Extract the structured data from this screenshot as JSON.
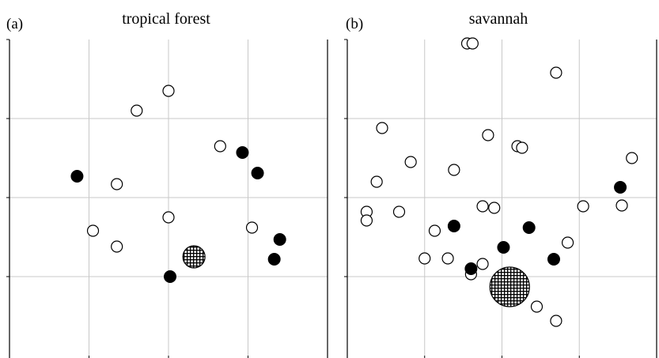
{
  "chart_data": [
    {
      "type": "scatter",
      "panel_label": "(a)",
      "title": "tropical forest",
      "xlim": [
        0,
        4
      ],
      "ylim": [
        0,
        4
      ],
      "grid": true,
      "open_circles": [
        {
          "x": 2.0,
          "y": 3.35
        },
        {
          "x": 1.6,
          "y": 3.1
        },
        {
          "x": 2.65,
          "y": 2.65
        },
        {
          "x": 1.35,
          "y": 2.17
        },
        {
          "x": 2.0,
          "y": 1.75
        },
        {
          "x": 1.05,
          "y": 1.58
        },
        {
          "x": 3.05,
          "y": 1.62
        },
        {
          "x": 1.35,
          "y": 1.38
        }
      ],
      "filled_circles": [
        {
          "x": 2.93,
          "y": 2.57
        },
        {
          "x": 0.85,
          "y": 2.27
        },
        {
          "x": 3.12,
          "y": 2.31
        },
        {
          "x": 3.4,
          "y": 1.47
        },
        {
          "x": 3.33,
          "y": 1.22
        },
        {
          "x": 2.02,
          "y": 1.0
        }
      ],
      "hatched_circles": [
        {
          "x": 2.32,
          "y": 1.25,
          "size": "small"
        }
      ]
    },
    {
      "type": "scatter",
      "panel_label": "(b)",
      "title": "savannah",
      "xlim": [
        0,
        4
      ],
      "ylim": [
        0,
        4
      ],
      "grid": true,
      "open_circles": [
        {
          "x": 1.55,
          "y": 3.95
        },
        {
          "x": 1.62,
          "y": 3.95
        },
        {
          "x": 2.7,
          "y": 3.58
        },
        {
          "x": 0.45,
          "y": 2.88
        },
        {
          "x": 1.82,
          "y": 2.79
        },
        {
          "x": 2.2,
          "y": 2.65
        },
        {
          "x": 2.26,
          "y": 2.63
        },
        {
          "x": 0.82,
          "y": 2.45
        },
        {
          "x": 1.38,
          "y": 2.35
        },
        {
          "x": 0.38,
          "y": 2.2
        },
        {
          "x": 3.68,
          "y": 2.5
        },
        {
          "x": 1.75,
          "y": 1.89
        },
        {
          "x": 1.9,
          "y": 1.87
        },
        {
          "x": 3.05,
          "y": 1.89
        },
        {
          "x": 3.55,
          "y": 1.9
        },
        {
          "x": 0.25,
          "y": 1.82
        },
        {
          "x": 0.67,
          "y": 1.82
        },
        {
          "x": 0.25,
          "y": 1.71
        },
        {
          "x": 1.13,
          "y": 1.58
        },
        {
          "x": 2.85,
          "y": 1.43
        },
        {
          "x": 1.0,
          "y": 1.23
        },
        {
          "x": 1.3,
          "y": 1.23
        },
        {
          "x": 1.75,
          "y": 1.16
        },
        {
          "x": 1.6,
          "y": 1.03
        },
        {
          "x": 2.45,
          "y": 0.62
        },
        {
          "x": 2.7,
          "y": 0.44
        }
      ],
      "filled_circles": [
        {
          "x": 3.53,
          "y": 2.13
        },
        {
          "x": 1.38,
          "y": 1.64
        },
        {
          "x": 2.35,
          "y": 1.62
        },
        {
          "x": 2.02,
          "y": 1.37
        },
        {
          "x": 2.67,
          "y": 1.22
        },
        {
          "x": 1.6,
          "y": 1.1
        }
      ],
      "hatched_circles": [
        {
          "x": 2.1,
          "y": 0.87,
          "size": "large"
        }
      ]
    }
  ]
}
